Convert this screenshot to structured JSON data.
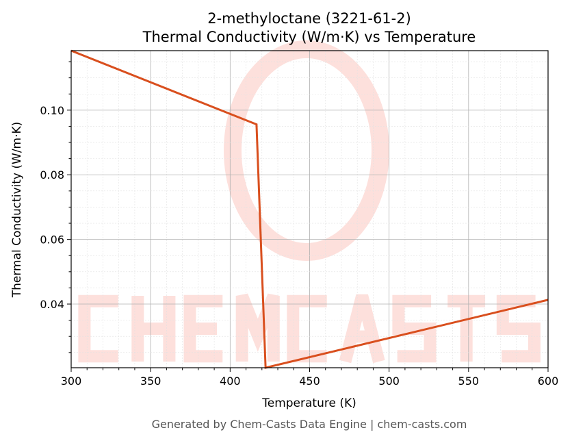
{
  "chart_data": {
    "type": "line",
    "title": "2-methyloctane (3221-61-2)",
    "subtitle": "Thermal Conductivity (W/m·K) vs Temperature",
    "xlabel": "Temperature (K)",
    "ylabel": "Thermal Conductivity (W/m·K)",
    "xlim": [
      300,
      600
    ],
    "ylim": [
      0.0203,
      0.1184
    ],
    "xticks": [
      "300",
      "350",
      "400",
      "450",
      "500",
      "550",
      "600"
    ],
    "yticks": [
      "0.04",
      "0.06",
      "0.08",
      "0.10"
    ],
    "grid": true,
    "series": [
      {
        "x": [
          300,
          416.6,
          422.3,
          600
        ],
        "y": [
          0.1184,
          0.0956,
          0.0203,
          0.0413
        ],
        "color": "#d94f1e"
      }
    ]
  },
  "watermark": "CHEMCASTS",
  "footer": "Generated by Chem-Casts Data Engine | chem-casts.com"
}
